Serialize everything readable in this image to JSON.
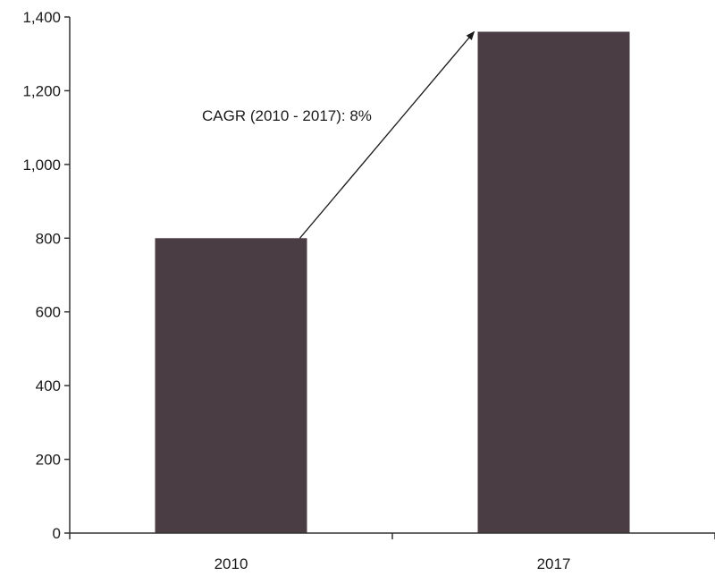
{
  "chart_data": {
    "type": "bar",
    "categories": [
      "2010",
      "2017"
    ],
    "values": [
      800,
      1360
    ],
    "ylim": [
      0,
      1400
    ],
    "yticks": [
      0,
      200,
      400,
      600,
      800,
      1000,
      1200,
      1400
    ],
    "ytick_labels": [
      "0",
      "200",
      "400",
      "600",
      "800",
      "1,000",
      "1,200",
      "1,400"
    ],
    "title": "",
    "xlabel": "",
    "ylabel": "",
    "grid": false,
    "bar_color": "#4a3e44",
    "annotations": [
      {
        "text": "CAGR (2010 - 2017): 8%",
        "arrow_from_category": "2010",
        "arrow_to_category": "2017"
      }
    ]
  }
}
